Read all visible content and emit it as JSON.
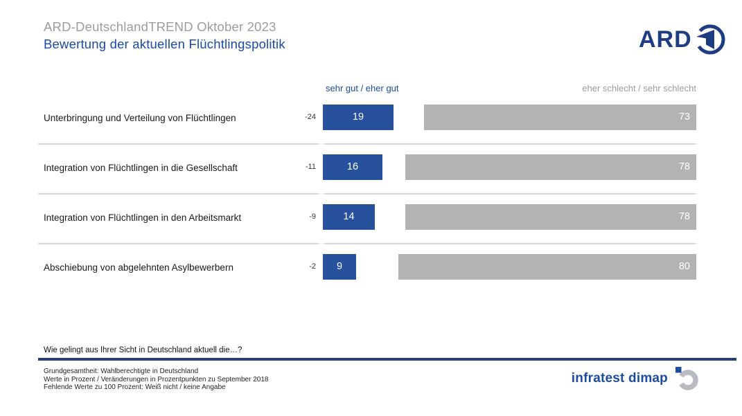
{
  "header": {
    "title": "ARD-DeutschlandTREND Oktober 2023",
    "subtitle": "Bewertung der aktuellen Flüchtlingspolitik",
    "ard_logo_text": "ARD"
  },
  "legend": {
    "positive_label": "sehr gut / eher gut",
    "negative_label": "eher schlecht / sehr schlecht"
  },
  "rows": [
    {
      "label": "Unterbringung und Verteilung von Flüchtlingen",
      "change": "-24",
      "pos": 19,
      "neg": 73
    },
    {
      "label": "Integration von Flüchtlingen in die Gesellschaft",
      "change": "-11",
      "pos": 16,
      "neg": 78
    },
    {
      "label": "Integration von Flüchtlingen in den Arbeitsmarkt",
      "change": "-9",
      "pos": 14,
      "neg": 78
    },
    {
      "label": "Abschiebung von abgelehnten Asylbewerbern",
      "change": "-2",
      "pos": 9,
      "neg": 80
    }
  ],
  "chart_data": {
    "type": "bar",
    "orientation": "horizontal",
    "title": "Bewertung der aktuellen Flüchtlingspolitik",
    "subtitle": "ARD-DeutschlandTREND Oktober 2023",
    "categories": [
      "Unterbringung und Verteilung von Flüchtlingen",
      "Integration von Flüchtlingen in die Gesellschaft",
      "Integration von Flüchtlingen in den Arbeitsmarkt",
      "Abschiebung von abgelehnten Asylbewerbern"
    ],
    "series": [
      {
        "name": "sehr gut / eher gut",
        "values": [
          19,
          16,
          14,
          9
        ],
        "color": "#27519d"
      },
      {
        "name": "eher schlecht / sehr schlecht",
        "values": [
          73,
          78,
          78,
          80
        ],
        "color": "#b3b3b3"
      }
    ],
    "changes": [
      -24,
      -11,
      -9,
      -2
    ],
    "unit": "Prozent",
    "xlim": [
      0,
      100
    ],
    "legend_position": "top",
    "grid": false
  },
  "footer": {
    "question": "Wie gelingt aus Ihrer Sicht in Deutschland aktuell die…?",
    "notes": [
      "Grundgesamtheit: Wahlberechtigte in Deutschland",
      "Werte in Prozent / Veränderungen in Prozentpunkten zu September 2018",
      "Fehlende Werte zu 100 Prozent: Weiß nicht / keine Angabe"
    ],
    "brand": "infratest dimap"
  }
}
